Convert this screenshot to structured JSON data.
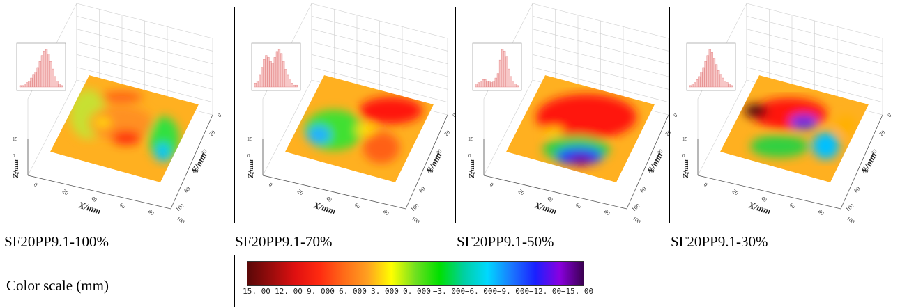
{
  "panels": [
    {
      "caption": "SF20PP9.1-100%",
      "x_axis": "X/mm",
      "y_axis": "Y/mm",
      "z_axis": "Z/mm",
      "x_ticks": [
        "0",
        "20",
        "40",
        "60",
        "80",
        "100"
      ],
      "y_ticks": [
        "0",
        "20",
        "40",
        "60",
        "80",
        "100"
      ],
      "z_ticks": [
        "15",
        "0",
        "-15"
      ],
      "hist": [
        1,
        1,
        2,
        3,
        4,
        6,
        8,
        10,
        13,
        17,
        21,
        24,
        25,
        22,
        17,
        12,
        7,
        4,
        2,
        1
      ],
      "blobs": [
        {
          "cx": 0.15,
          "cy": 0.45,
          "rx": 0.22,
          "ry": 0.55,
          "c": "#c8e030"
        },
        {
          "cx": 0.45,
          "cy": 0.45,
          "rx": 0.38,
          "ry": 0.38,
          "c": "#ff9020"
        },
        {
          "cx": 0.55,
          "cy": 0.6,
          "rx": 0.18,
          "ry": 0.16,
          "c": "#ff3010"
        },
        {
          "cx": 0.3,
          "cy": 0.5,
          "rx": 0.1,
          "ry": 0.1,
          "c": "#ffe000"
        },
        {
          "cx": 0.86,
          "cy": 0.5,
          "rx": 0.18,
          "ry": 0.5,
          "c": "#30e040"
        },
        {
          "cx": 0.9,
          "cy": 0.65,
          "rx": 0.08,
          "ry": 0.2,
          "c": "#00c0ff"
        },
        {
          "cx": 0.35,
          "cy": 0.15,
          "rx": 0.25,
          "ry": 0.12,
          "c": "#ff6018"
        }
      ]
    },
    {
      "caption": "SF20PP9.1-70%",
      "x_axis": "X/mm",
      "y_axis": "Y/mm",
      "z_axis": "Z/mm",
      "x_ticks": [
        "0",
        "20",
        "40",
        "60",
        "80",
        "100"
      ],
      "y_ticks": [
        "0",
        "20",
        "40",
        "60",
        "80",
        "100"
      ],
      "z_ticks": [
        "15",
        "0",
        "-15"
      ],
      "hist": [
        2,
        3,
        6,
        10,
        14,
        16,
        15,
        13,
        12,
        15,
        18,
        19,
        17,
        13,
        9,
        6,
        4,
        2,
        1,
        1
      ],
      "blobs": [
        {
          "cx": 0.3,
          "cy": 0.6,
          "rx": 0.35,
          "ry": 0.45,
          "c": "#40e030"
        },
        {
          "cx": 0.2,
          "cy": 0.7,
          "rx": 0.14,
          "ry": 0.2,
          "c": "#20b0ff"
        },
        {
          "cx": 0.68,
          "cy": 0.2,
          "rx": 0.38,
          "ry": 0.3,
          "c": "#ff1808"
        },
        {
          "cx": 0.75,
          "cy": 0.65,
          "rx": 0.22,
          "ry": 0.35,
          "c": "#ff6018"
        },
        {
          "cx": 0.55,
          "cy": 0.5,
          "rx": 0.12,
          "ry": 0.12,
          "c": "#ffe000"
        }
      ]
    },
    {
      "caption": "SF20PP9.1-50%",
      "x_axis": "X/mm",
      "y_axis": "Y/mm",
      "z_axis": "Z/mm",
      "x_ticks": [
        "0",
        "20",
        "40",
        "60",
        "80",
        "100"
      ],
      "y_ticks": [
        "0",
        "20",
        "40",
        "60",
        "80",
        "100"
      ],
      "z_ticks": [
        "15",
        "0",
        "-15"
      ],
      "hist": [
        2,
        3,
        4,
        5,
        5,
        4,
        4,
        3,
        4,
        6,
        9,
        18,
        25,
        24,
        20,
        12,
        7,
        4,
        2,
        1
      ],
      "blobs": [
        {
          "cx": 0.5,
          "cy": 0.35,
          "rx": 0.6,
          "ry": 0.5,
          "c": "#ff1808"
        },
        {
          "cx": 0.55,
          "cy": 0.75,
          "rx": 0.4,
          "ry": 0.3,
          "c": "#30d040"
        },
        {
          "cx": 0.6,
          "cy": 0.82,
          "rx": 0.28,
          "ry": 0.2,
          "c": "#1840ff"
        },
        {
          "cx": 0.63,
          "cy": 0.86,
          "rx": 0.14,
          "ry": 0.12,
          "c": "#7000a0"
        },
        {
          "cx": 0.3,
          "cy": 0.62,
          "rx": 0.12,
          "ry": 0.1,
          "c": "#ffd000"
        }
      ]
    },
    {
      "caption": "SF20PP9.1-30%",
      "x_axis": "X/mm",
      "y_axis": "Y/mm",
      "z_axis": "Z/mm",
      "x_ticks": [
        "0",
        "20",
        "40",
        "60",
        "80",
        "100"
      ],
      "y_ticks": [
        "0",
        "20",
        "40",
        "60",
        "80",
        "100"
      ],
      "z_ticks": [
        "15",
        "0",
        "-15"
      ],
      "hist": [
        1,
        2,
        3,
        5,
        7,
        10,
        13,
        17,
        21,
        25,
        23,
        19,
        15,
        11,
        8,
        6,
        4,
        3,
        2,
        1
      ],
      "blobs": [
        {
          "cx": 0.4,
          "cy": 0.35,
          "rx": 0.45,
          "ry": 0.35,
          "c": "#ff1808"
        },
        {
          "cx": 0.12,
          "cy": 0.42,
          "rx": 0.14,
          "ry": 0.16,
          "c": "#5a0808"
        },
        {
          "cx": 0.55,
          "cy": 0.4,
          "rx": 0.16,
          "ry": 0.16,
          "c": "#1a40ff"
        },
        {
          "cx": 0.55,
          "cy": 0.4,
          "rx": 0.08,
          "ry": 0.08,
          "c": "#8a00c0"
        },
        {
          "cx": 0.45,
          "cy": 0.75,
          "rx": 0.35,
          "ry": 0.25,
          "c": "#30d040"
        },
        {
          "cx": 0.82,
          "cy": 0.6,
          "rx": 0.16,
          "ry": 0.3,
          "c": "#00c0ff"
        },
        {
          "cx": 0.9,
          "cy": 0.3,
          "rx": 0.12,
          "ry": 0.2,
          "c": "#ffb000"
        }
      ]
    }
  ],
  "legend": {
    "label": "Color scale (mm)",
    "ticks": [
      "15. 00",
      "12. 00",
      "9. 000",
      "6. 000",
      "3. 000",
      "0. 000",
      "−3. 000",
      "−6. 000",
      "−9. 000",
      "−12. 00",
      "−15. 00"
    ],
    "colors": [
      "#5a0808",
      "#9a0c0c",
      "#e01010",
      "#ff2a10",
      "#ff6a18",
      "#ffa020",
      "#ffff00",
      "#70e020",
      "#00e000",
      "#00d0a0",
      "#00d8ff",
      "#1a78ff",
      "#1a20ff",
      "#8a00e0",
      "#3a0050"
    ]
  }
}
